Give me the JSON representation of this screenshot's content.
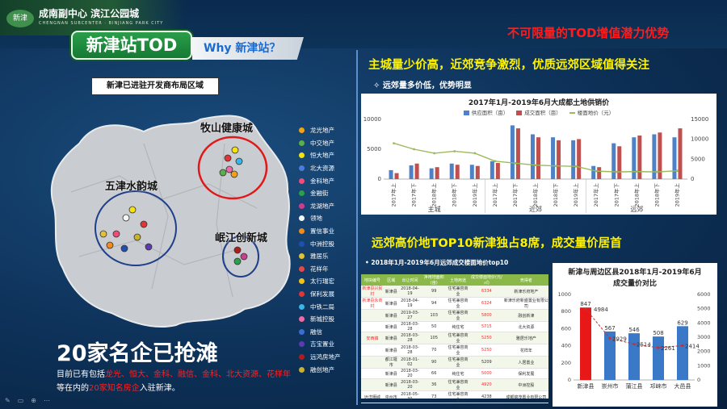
{
  "header": {
    "brand_title": "成南副中心  滨江公园城",
    "brand_sub": "CHENGNAN SUBCENTER · BINJIANG PARK CITY",
    "logo_text": "新津",
    "slide_title": "新津站TOD",
    "why_label": "Why 新津站？",
    "slogan": "不可限量的TOD增值潜力优势"
  },
  "left": {
    "map_label": "新津已进驻开发商布局区域",
    "regions": [
      "牧山健康城",
      "五津水韵城",
      "岷江创新城"
    ],
    "developers": [
      {
        "name": "龙光地产",
        "color": "#f2a21a"
      },
      {
        "name": "中交地产",
        "color": "#5ab04b"
      },
      {
        "name": "恒大地产",
        "color": "#f7e20f"
      },
      {
        "name": "北大资源",
        "color": "#4b7de0"
      },
      {
        "name": "金科地产",
        "color": "#f24a7a"
      },
      {
        "name": "金融街",
        "color": "#2d9e49"
      },
      {
        "name": "龙湖地产",
        "color": "#c83f8e"
      },
      {
        "name": "领地",
        "color": "#f5f5f5"
      },
      {
        "name": "置信事业",
        "color": "#f28b1a"
      },
      {
        "name": "中洲控股",
        "color": "#1f4fb0"
      },
      {
        "name": "雅居乐",
        "color": "#e0c23a"
      },
      {
        "name": "花样年",
        "color": "#e04a4a"
      },
      {
        "name": "太行瑞宏",
        "color": "#f2c316"
      },
      {
        "name": "保利发展",
        "color": "#e03636"
      },
      {
        "name": "中铁二局",
        "color": "#3ab5e8"
      },
      {
        "name": "新城控股",
        "color": "#ef6aa6"
      },
      {
        "name": "融信",
        "color": "#3a6fd0"
      },
      {
        "name": "吉宝置业",
        "color": "#5e3ab0"
      },
      {
        "name": "远鸿房地产",
        "color": "#b01c1c"
      },
      {
        "name": "融创地产",
        "color": "#c8b22e"
      }
    ],
    "big_count": "20家名企已抢滩",
    "desc_prefix": "目前已有包括",
    "desc_highlight": "龙光、恒大、金科、融信、金科、北大资源、花样年",
    "desc_line2_prefix": "等在内的",
    "desc_line2_highlight": "20家知名房企",
    "desc_line2_suffix": "入驻新津。"
  },
  "right": {
    "section1_title": "主城量少价高，近郊竞争激烈，优质远郊区域值得关注",
    "section1_note": "✧  远郊量多价低，优势明显",
    "section2_title": "远郊高价地TOP10新津独占8席，成交量价居首",
    "section2_note": "•  2018年1月-2019年6月远郊成交楼面地价top10"
  },
  "chart_data": [
    {
      "type": "bar",
      "title": "2017年1月-2019年6月大成都土地供销价",
      "categories": [
        "2017年上",
        "2017年下",
        "2018年上",
        "2018年下",
        "2019年上",
        "2017年上",
        "2017年下",
        "2018年上",
        "2018年下",
        "2019年上",
        "2017年上",
        "2017年下",
        "2018年上",
        "2018年下",
        "2019年上"
      ],
      "groups": [
        "主城",
        "近郊",
        "远郊"
      ],
      "series": [
        {
          "name": "供应面积（亩）",
          "color": "#4f81c7",
          "values": [
            1500,
            2300,
            1800,
            2600,
            2400,
            3000,
            9000,
            7500,
            7000,
            6500,
            2200,
            6000,
            7000,
            7500,
            7000
          ]
        },
        {
          "name": "成交面积（亩）",
          "color": "#c0504d",
          "values": [
            1000,
            2600,
            2000,
            2400,
            2200,
            2700,
            8500,
            7000,
            6500,
            6700,
            2000,
            5500,
            7300,
            7800,
            8500
          ]
        },
        {
          "name": "楼面地价（元）",
          "color": "#9bbb59",
          "values": [
            9000,
            7500,
            6500,
            7000,
            6500,
            4500,
            4000,
            3500,
            3300,
            3200,
            2000,
            1800,
            1900,
            1800,
            2100
          ]
        }
      ],
      "ylim_left": [
        0,
        10000
      ],
      "ylim_right": [
        0,
        15000
      ],
      "yticks_left": [
        "0",
        "5000",
        "10000"
      ],
      "yticks_right": [
        "0",
        "5000",
        "10000",
        "15000"
      ]
    },
    {
      "type": "table",
      "headers": [
        "地块编号",
        "区域",
        "出让时间",
        "净用地面积(亩)",
        "土地用途",
        "成交楼面地价(元/㎡)",
        "竞得者"
      ],
      "rows": [
        [
          "新津县兴民村",
          "新津县",
          "2018-04-19",
          "99",
          "住宅兼容商业",
          "6334",
          "新津乐府地产"
        ],
        [
          "新津县永商村",
          "新津县",
          "2018-04-19",
          "94",
          "住宅兼容商业",
          "6324",
          "新津乐府新盛置业有限公司"
        ],
        [
          "",
          "新津县",
          "2019-03-27",
          "103",
          "住宅兼容商业",
          "5800",
          "融创新津"
        ],
        [
          "",
          "新津县",
          "2018-03-28",
          "50",
          "纯住宅",
          "5715",
          "北大资源"
        ],
        [
          "安西镇",
          "新津县",
          "2018-03-28",
          "105",
          "住宅兼容商业",
          "5250",
          "雅居乐地产"
        ],
        [
          "",
          "新津县",
          "2018-03-28",
          "70",
          "住宅兼容商业",
          "5250",
          "花样年"
        ],
        [
          "",
          "都江堰市",
          "2018-01-02",
          "90",
          "住宅兼容商业",
          "5209",
          "人居置业"
        ],
        [
          "",
          "新津县",
          "2018-03-20",
          "66",
          "纯住宅",
          "5000",
          "保利发展"
        ],
        [
          "",
          "新津县",
          "2018-03-20",
          "36",
          "住宅兼容商业",
          "4920",
          "中洲控股"
        ],
        [
          "远洋栖城",
          "崇州市",
          "2018-05-30",
          "73",
          "住宅兼容商业",
          "4238",
          "成都锦茂置业有限公司"
        ]
      ],
      "highlight_value_rows": [
        0,
        1,
        2,
        3,
        4,
        5,
        7,
        8
      ]
    },
    {
      "type": "bar",
      "title": "新津与周边区县2018年1月-2019年6月成交量价对比",
      "categories": [
        "新津县",
        "崇州市",
        "蒲江县",
        "邛崃市",
        "大邑县"
      ],
      "series": [
        {
          "name": "成交量",
          "values": [
            847,
            567,
            546,
            508,
            629
          ],
          "colors": [
            "#e81818",
            "#3a78c8",
            "#3a78c8",
            "#3a78c8",
            "#3a78c8"
          ]
        },
        {
          "name": "成交价",
          "values": [
            4984,
            2929,
            2514,
            2261,
            2414
          ],
          "color": "#c83030"
        }
      ],
      "ylim_left": [
        0,
        1000
      ],
      "ylim_right": [
        0,
        6000
      ],
      "yticks_left": [
        "0",
        "200",
        "400",
        "600",
        "800",
        "1000"
      ],
      "yticks_right": [
        "0",
        "1000",
        "2000",
        "3000",
        "4000",
        "5000",
        "6000"
      ]
    }
  ]
}
